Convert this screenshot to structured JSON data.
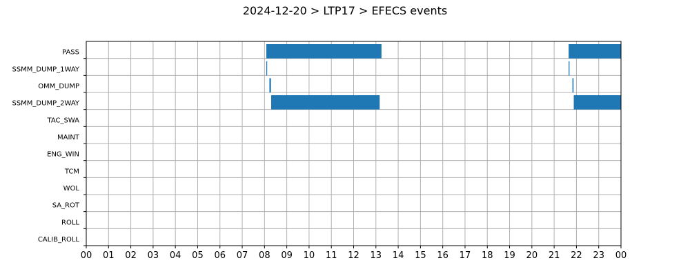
{
  "chart_data": {
    "type": "gantt",
    "title": "2024-12-20 > LTP17 > EFECS events",
    "xlabel": "",
    "ylabel": "",
    "xlim": [
      0,
      24
    ],
    "x_ticks": [
      "00",
      "01",
      "02",
      "03",
      "04",
      "05",
      "06",
      "07",
      "08",
      "09",
      "10",
      "11",
      "12",
      "13",
      "14",
      "15",
      "16",
      "17",
      "18",
      "19",
      "20",
      "21",
      "22",
      "23",
      "00"
    ],
    "categories": [
      "PASS",
      "SSMM_DUMP_1WAY",
      "OMM_DUMP",
      "SSMM_DUMP_2WAY",
      "TAC_SWA",
      "MAINT",
      "ENG_WIN",
      "TCM",
      "WOL",
      "SA_ROT",
      "ROLL",
      "CALIB_ROLL"
    ],
    "grid": true,
    "bar_color": "#1f77b4",
    "intervals": [
      {
        "category": "PASS",
        "start": 8.08,
        "end": 13.25
      },
      {
        "category": "PASS",
        "start": 21.65,
        "end": 24.0
      },
      {
        "category": "SSMM_DUMP_1WAY",
        "start": 8.08,
        "end": 8.12
      },
      {
        "category": "SSMM_DUMP_1WAY",
        "start": 21.65,
        "end": 21.69
      },
      {
        "category": "OMM_DUMP",
        "start": 8.22,
        "end": 8.29
      },
      {
        "category": "OMM_DUMP",
        "start": 21.82,
        "end": 21.87
      },
      {
        "category": "SSMM_DUMP_2WAY",
        "start": 8.3,
        "end": 13.17
      },
      {
        "category": "SSMM_DUMP_2WAY",
        "start": 21.88,
        "end": 24.0
      }
    ]
  }
}
